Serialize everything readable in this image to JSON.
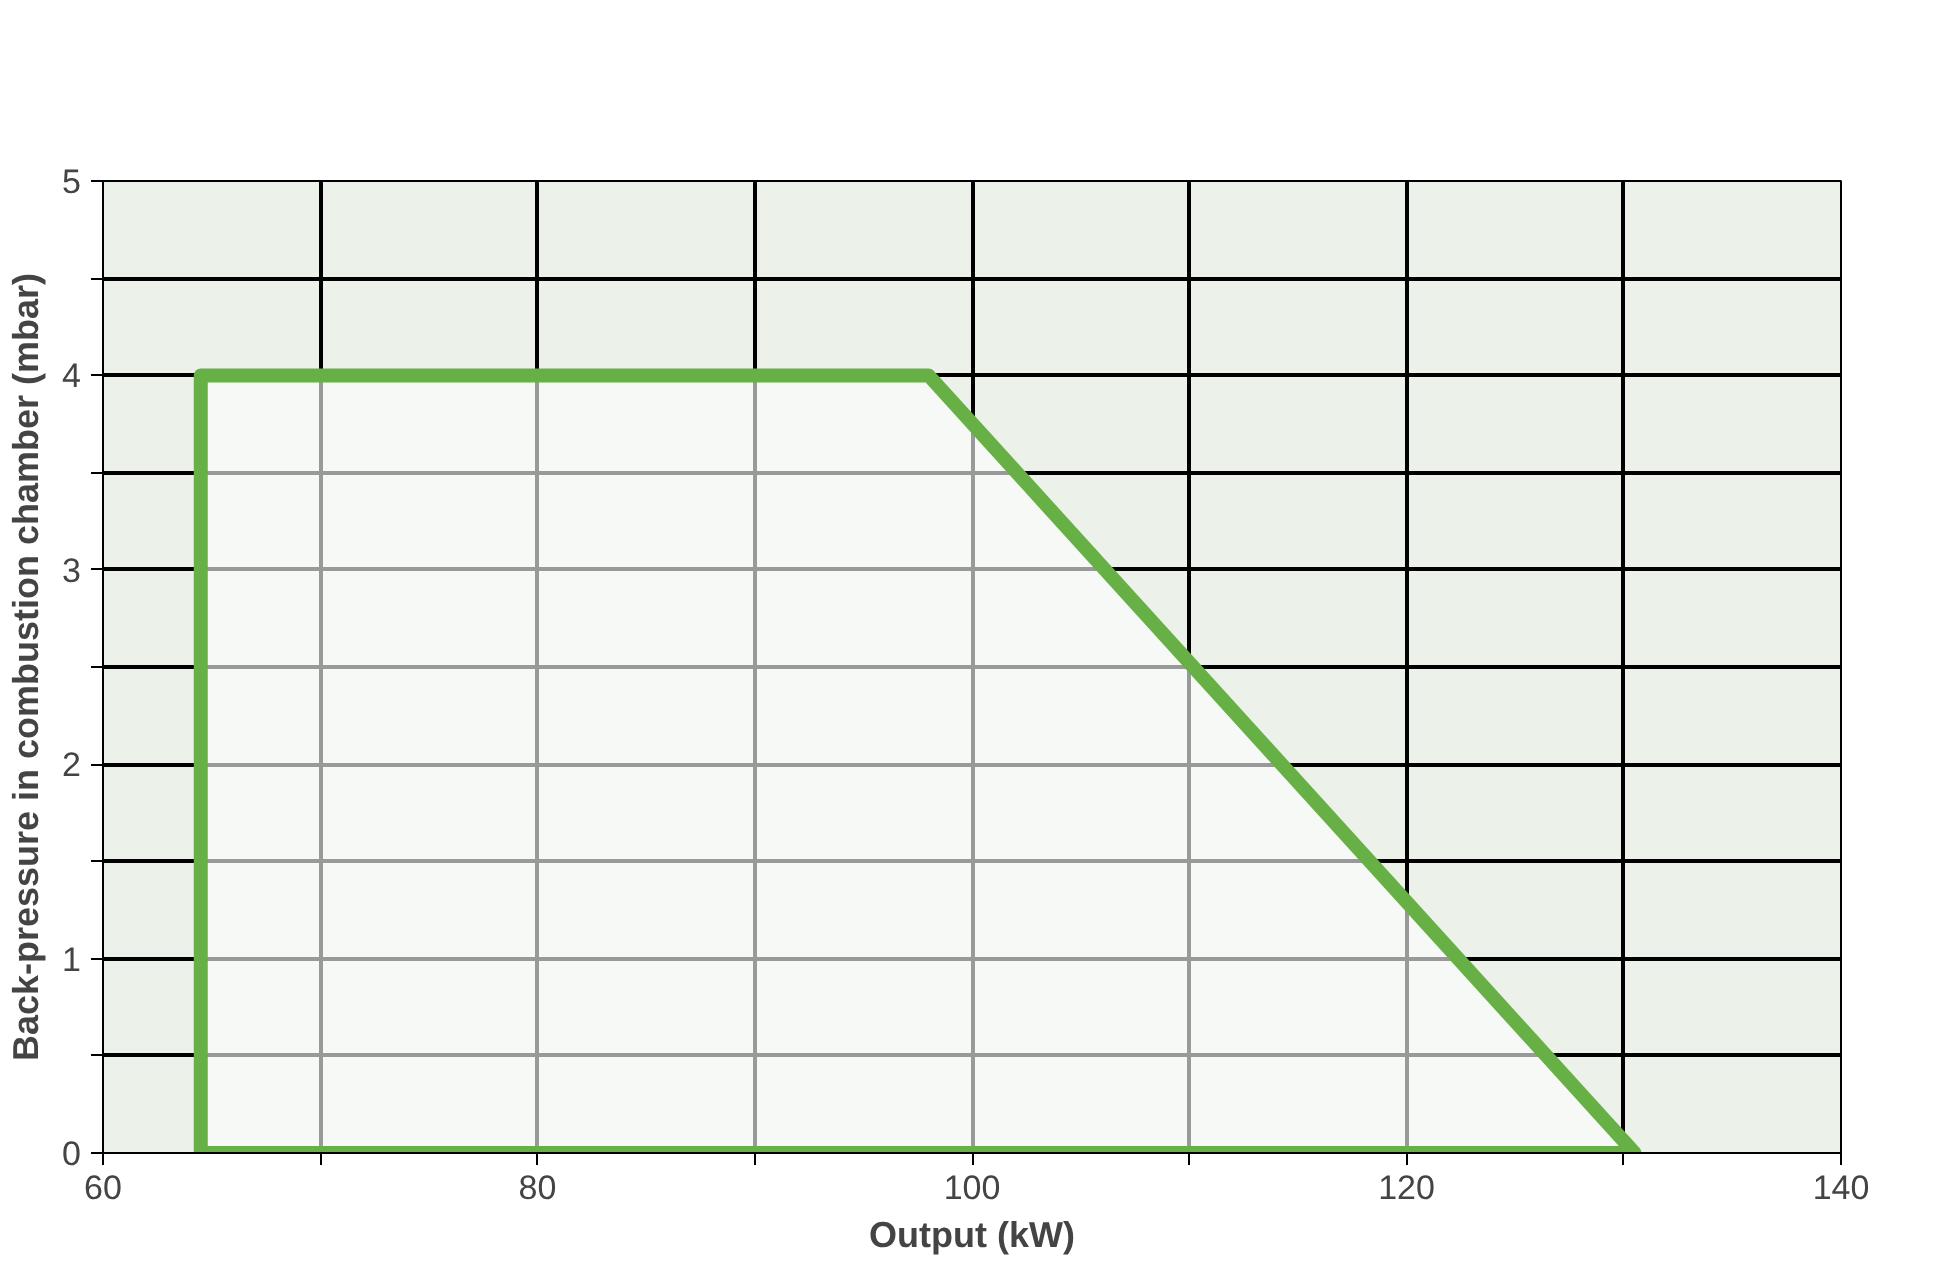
{
  "chart_data": {
    "type": "area",
    "xlabel": "Output (kW)",
    "ylabel": "Back-pressure in combustion chamber (mbar)",
    "x": [
      64.5,
      64.5,
      98,
      130.5
    ],
    "series": [
      {
        "color": "#66b045",
        "values": [
          0,
          4,
          4,
          0
        ]
      }
    ],
    "xlim": [
      60,
      140
    ],
    "ylim": [
      0,
      5
    ],
    "xticks": [
      60,
      {
        "value": 70,
        "label": null
      },
      80,
      {
        "value": 90,
        "label": null
      },
      100,
      {
        "value": 110,
        "label": null
      },
      120,
      {
        "value": 130,
        "label": null
      },
      140
    ],
    "yticks": [
      0,
      {
        "value": 0.5,
        "label": null
      },
      1,
      {
        "value": 1.5,
        "label": null
      },
      2,
      {
        "value": 2.5,
        "label": null
      },
      3,
      {
        "value": 3.5,
        "label": null
      },
      4,
      {
        "value": 4.5,
        "label": null
      },
      5
    ],
    "grid": true
  }
}
